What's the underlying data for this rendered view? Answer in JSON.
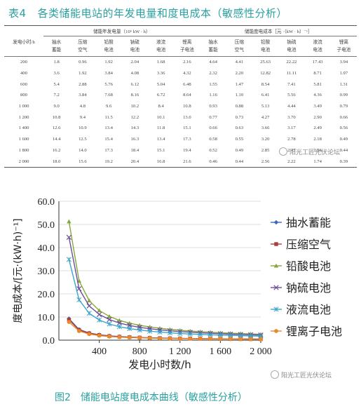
{
  "table": {
    "number": "表4",
    "title": "各类储能电站的年发电量和度电成本（敏感性分析）",
    "row_header": "发电小时/h",
    "group1_header": "储能年发电量（10⁶ kW · h）",
    "group2_header": "储能度电成本［元 ·（kW · h）⁻¹］",
    "columns": [
      "抽水蓄能",
      "压缩空气",
      "铅酸电池",
      "钠硫电池",
      "液流电池",
      "锂离子电池"
    ],
    "rows": [
      {
        "hours": "200",
        "gen": [
          "1.8",
          "0.96",
          "1.92",
          "2.04",
          "1.68",
          "2.16"
        ],
        "cost": [
          "4.64",
          "4.41",
          "25.63",
          "22.22",
          "17.43",
          "3.94"
        ]
      },
      {
        "hours": "400",
        "gen": [
          "3.6",
          "1.92",
          "3.84",
          "4.08",
          "3.36",
          "4.32"
        ],
        "cost": [
          "2.32",
          "2.20",
          "12.82",
          "11.11",
          "8.71",
          "1.97"
        ]
      },
      {
        "hours": "600",
        "gen": [
          "5.4",
          "2.88",
          "5.76",
          "6.12",
          "5.04",
          "6.48"
        ],
        "cost": [
          "1.55",
          "1.47",
          "8.54",
          "7.41",
          "5.81",
          "1.31"
        ]
      },
      {
        "hours": "800",
        "gen": [
          "7.2",
          "3.84",
          "7.68",
          "8.16",
          "6.72",
          "8.64"
        ],
        "cost": [
          "1.16",
          "1.10",
          "6.41",
          "5.56",
          "4.36",
          "0.99"
        ]
      },
      {
        "hours": "1 000",
        "gen": [
          "9.0",
          "4.8",
          "9.6",
          "10.2",
          "8.4",
          "10.8"
        ],
        "cost": [
          "0.93",
          "0.88",
          "5.13",
          "4.44",
          "3.49",
          "0.79"
        ]
      },
      {
        "hours": "1 200",
        "gen": [
          "10.8",
          "9.4",
          "11.5",
          "12.2",
          "10.1",
          "13.0"
        ],
        "cost": [
          "0.77",
          "0.73",
          "4.27",
          "3.70",
          "2.90",
          "0.66"
        ]
      },
      {
        "hours": "1 400",
        "gen": [
          "12.6",
          "10.9",
          "13.4",
          "14.3",
          "11.8",
          "15.1"
        ],
        "cost": [
          "0.66",
          "0.63",
          "3.66",
          "3.17",
          "2.49",
          "0.56"
        ]
      },
      {
        "hours": "1 600",
        "gen": [
          "14.4",
          "12.5",
          "15.4",
          "16.3",
          "13.4",
          "17.3"
        ],
        "cost": [
          "0.58",
          "0.55",
          "3.20",
          "2.78",
          "2.18",
          "0.49"
        ]
      },
      {
        "hours": "1 800",
        "gen": [
          "16.2",
          "14.0",
          "17.3",
          "18.4",
          "15.1",
          "19.4"
        ],
        "cost": [
          "0.52",
          "0.49",
          "2.85",
          "2.47",
          "1.94",
          "0.44"
        ]
      },
      {
        "hours": "2 000",
        "gen": [
          "18.0",
          "15.6",
          "19.2",
          "20.4",
          "16.8",
          "21.6"
        ],
        "cost": [
          "0.46",
          "0.44",
          "2.56",
          "2.22",
          "1.74",
          "0.39"
        ]
      }
    ]
  },
  "watermark": "阳光工匠光伏论坛",
  "figure": {
    "number": "图2",
    "title": "储能电站度电成本曲线（敏感性分析）"
  },
  "chart_data": {
    "type": "line",
    "x": [
      100,
      200,
      300,
      400,
      500,
      600,
      700,
      800,
      900,
      1000,
      1100,
      1200,
      1300,
      1400,
      1500,
      1600,
      1700,
      1800,
      1900,
      2000
    ],
    "xlabel": "发电小时数/h",
    "ylabel": "度电成本/[元·(kW·h)⁻¹]",
    "xlim": [
      0,
      2000
    ],
    "ylim": [
      0,
      60
    ],
    "xticks": [
      400,
      800,
      1200,
      1600,
      2000
    ],
    "xtick_labels": [
      "400",
      "800",
      "1 200",
      "1 600",
      "2 000"
    ],
    "yticks": [
      0,
      10,
      20,
      30,
      40,
      50,
      60
    ],
    "ytick_labels": [
      "0.0",
      "10.0",
      "20.0",
      "30.0",
      "40.0",
      "50.0",
      "60.0"
    ],
    "grid": "horizontal",
    "legend_position": "right",
    "series": [
      {
        "name": "抽水蓄能",
        "color": "#3b6db3",
        "marker": "diamond",
        "values": [
          9.28,
          4.64,
          3.09,
          2.32,
          1.86,
          1.55,
          1.33,
          1.16,
          1.03,
          0.93,
          0.84,
          0.77,
          0.71,
          0.66,
          0.62,
          0.58,
          0.55,
          0.52,
          0.49,
          0.46
        ]
      },
      {
        "name": "压缩空气",
        "color": "#b03a3a",
        "marker": "square",
        "values": [
          8.82,
          4.41,
          2.94,
          2.2,
          1.76,
          1.47,
          1.26,
          1.1,
          0.98,
          0.88,
          0.8,
          0.73,
          0.68,
          0.63,
          0.59,
          0.55,
          0.52,
          0.49,
          0.46,
          0.44
        ]
      },
      {
        "name": "铅酸电池",
        "color": "#86a83a",
        "marker": "triangle",
        "values": [
          51.26,
          25.63,
          17.09,
          12.82,
          10.25,
          8.54,
          7.32,
          6.41,
          5.7,
          5.13,
          4.66,
          4.27,
          3.94,
          3.66,
          3.42,
          3.2,
          3.02,
          2.85,
          2.7,
          2.56
        ]
      },
      {
        "name": "钠硫电池",
        "color": "#6d4b9a",
        "marker": "x",
        "values": [
          44.44,
          22.22,
          14.81,
          11.11,
          8.89,
          7.41,
          6.35,
          5.56,
          4.94,
          4.44,
          4.04,
          3.7,
          3.42,
          3.17,
          2.96,
          2.78,
          2.61,
          2.47,
          2.34,
          2.22
        ]
      },
      {
        "name": "液流电池",
        "color": "#3aa5c8",
        "marker": "star",
        "values": [
          34.86,
          17.43,
          11.62,
          8.71,
          6.97,
          5.81,
          4.98,
          4.36,
          3.87,
          3.49,
          3.17,
          2.9,
          2.68,
          2.49,
          2.32,
          2.18,
          2.05,
          1.94,
          1.83,
          1.74
        ]
      },
      {
        "name": "锂离子电池",
        "color": "#e8892a",
        "marker": "circle",
        "values": [
          7.88,
          3.94,
          2.63,
          1.97,
          1.58,
          1.31,
          1.13,
          0.99,
          0.88,
          0.79,
          0.72,
          0.66,
          0.61,
          0.56,
          0.53,
          0.49,
          0.46,
          0.44,
          0.41,
          0.39
        ]
      }
    ]
  }
}
